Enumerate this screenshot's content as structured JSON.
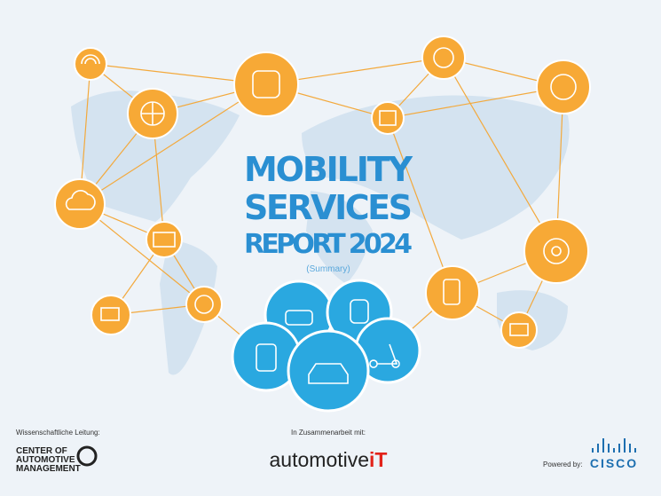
{
  "title": {
    "lines": [
      "MOBILITY",
      "SERVICES",
      "REPORT 2024"
    ],
    "subtitle": "(Summary)"
  },
  "footer": {
    "left": {
      "caption": "Wissenschaftliche Leitung:",
      "logo_lines": [
        "CENTER OF",
        "AUTOMOTIVE",
        "MANAGEMENT"
      ]
    },
    "center": {
      "caption": "In Zusammenarbeit mit:",
      "logo": "automotive",
      "logo_accent": "iT"
    },
    "right": {
      "caption": "Powered by:",
      "logo": "CISCO"
    }
  }
}
